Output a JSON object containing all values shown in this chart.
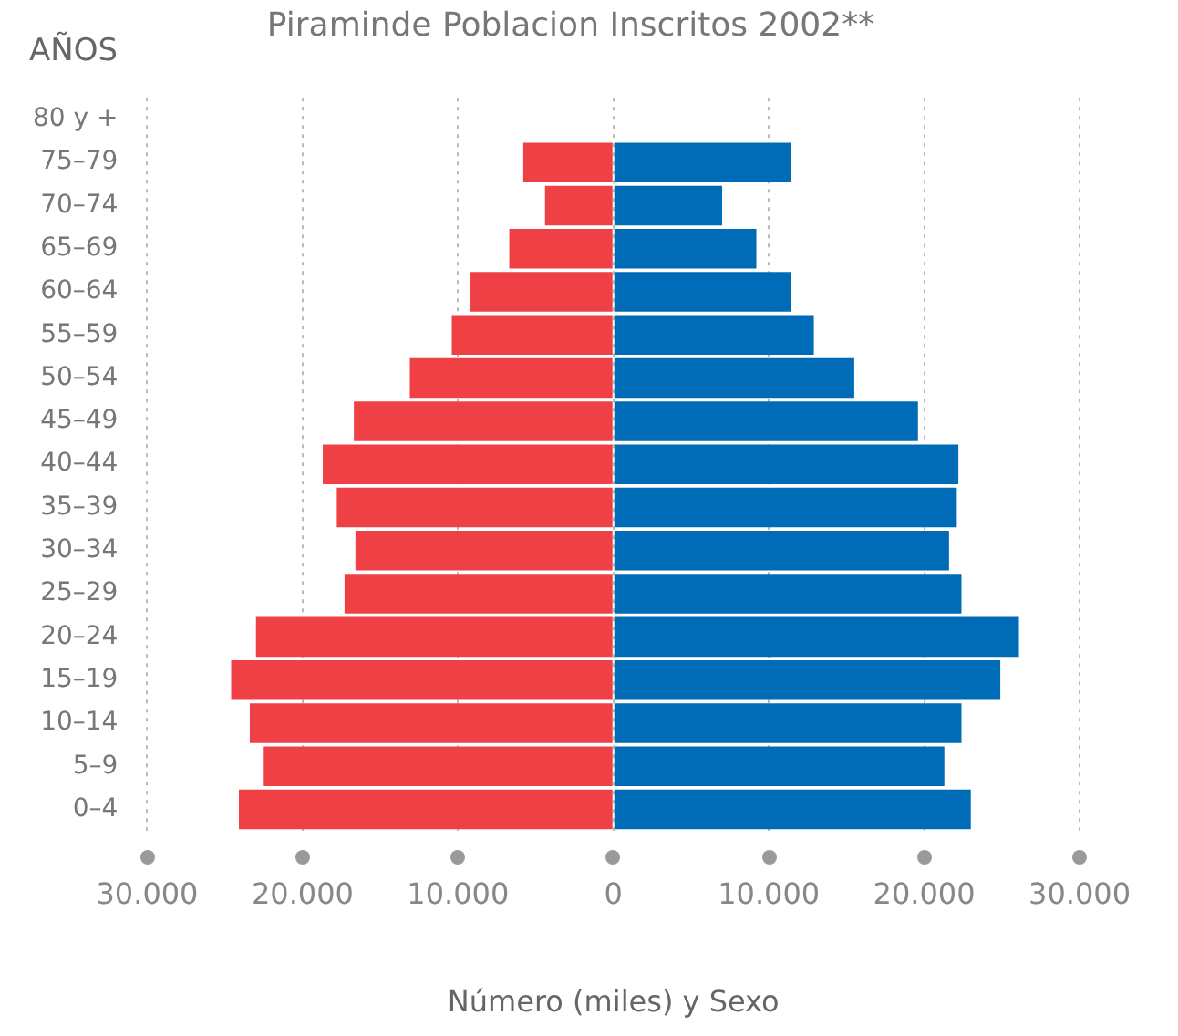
{
  "chart_data": {
    "type": "bar",
    "orientation": "horizontal",
    "stacked": true,
    "title": "Piraminde Poblacion Inscritos 2002**",
    "xlabel": "Número (miles) y Sexo",
    "ylabel": "AÑOS",
    "categories": [
      "80 y +",
      "75–79",
      "70–74",
      "65–69",
      "60–64",
      "55–59",
      "50–54",
      "45–49",
      "40–44",
      "35–39",
      "30–34",
      "25–29",
      "20–24",
      "15–19",
      "10–14",
      "5–9",
      "0–4"
    ],
    "series": [
      {
        "color": "#ef4145",
        "values": [
          null,
          -5800,
          -4400,
          -6700,
          -9200,
          -10400,
          -13100,
          -16700,
          -18700,
          -17800,
          -16600,
          -17300,
          -23000,
          -24600,
          -23400,
          -22500,
          -24100
        ]
      },
      {
        "color": "#006cb8",
        "values": [
          null,
          11400,
          7000,
          9200,
          11400,
          12900,
          15500,
          19600,
          22200,
          22100,
          21600,
          22400,
          26100,
          24900,
          22400,
          21300,
          23000
        ]
      }
    ],
    "xlim": [
      -30000,
      30000
    ],
    "xticks": [
      {
        "value": -30000,
        "label": "30.000"
      },
      {
        "value": -20000,
        "label": "20.000"
      },
      {
        "value": -10000,
        "label": "10.000"
      },
      0,
      {
        "value": 10000,
        "label": "10.000"
      },
      {
        "value": 20000,
        "label": "20.000"
      },
      {
        "value": 30000,
        "label": "30.000"
      }
    ],
    "grid": "x",
    "legend": false
  }
}
